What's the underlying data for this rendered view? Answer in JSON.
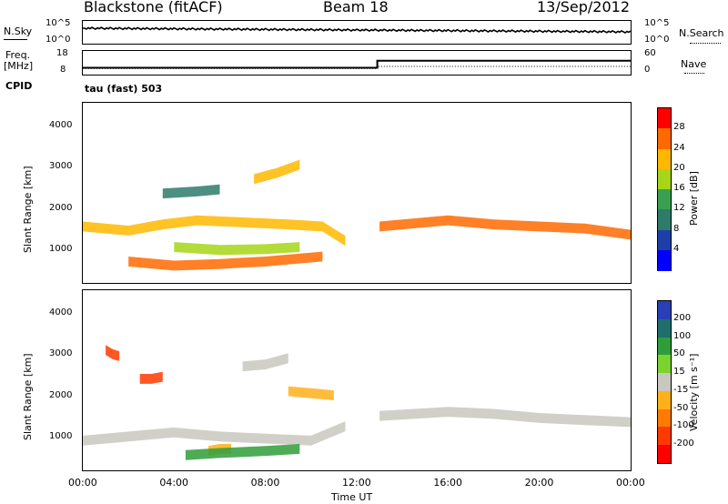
{
  "header": {
    "site": "Blackstone (fitACF)",
    "beam": "Beam 18",
    "date": "13/Sep/2012"
  },
  "status_panels": {
    "nsky_label": "N.Sky",
    "nsearch_label": "N.Search",
    "freq_label_1": "Freq.",
    "freq_label_2": "[MHz]",
    "nave_label": "Nave",
    "cpid_label": "CPID",
    "cpid_value": "tau (fast) 503",
    "noise_ticks": [
      "10^5",
      "10^0"
    ],
    "freq_ticks": [
      "18",
      "8"
    ],
    "nave_ticks": [
      "60",
      "0"
    ]
  },
  "x_axis": {
    "label": "Time UT",
    "ticks": [
      "00:00",
      "04:00",
      "08:00",
      "12:00",
      "16:00",
      "20:00",
      "00:00"
    ]
  },
  "y_axis": {
    "label": "Slant Range [km]",
    "ticks": [
      "1000",
      "2000",
      "3000",
      "4000"
    ]
  },
  "power_scale": {
    "label": "Power [dB]",
    "ticks": [
      "4",
      "8",
      "12",
      "16",
      "20",
      "24",
      "28"
    ],
    "colors": [
      "#0000ff",
      "#1f3fa8",
      "#2e7b6a",
      "#3aa050",
      "#a6d617",
      "#ffb800",
      "#ff6a00",
      "#ff0000"
    ]
  },
  "velocity_scale": {
    "label": "Velocity [m s⁻¹]",
    "ticks": [
      "200",
      "100",
      "50",
      "15",
      "-15",
      "-50",
      "-100",
      "-200"
    ],
    "colors": [
      "#2a3fb5",
      "#1f6e6c",
      "#2f9e3a",
      "#7ad32e",
      "#c8c8c0",
      "#ffb01a",
      "#ff7a00",
      "#ff3a00",
      "#ff0000"
    ]
  },
  "chart_data": {
    "type": "heatmap",
    "title": "Blackstone (fitACF)",
    "xlabel": "Time UT",
    "ylabel": "Slant Range [km]",
    "xlim": [
      0,
      24
    ],
    "ylim": [
      180,
      4550
    ],
    "frequency_series": {
      "x": [
        0,
        12.9,
        12.9,
        24
      ],
      "values": [
        10.5,
        10.5,
        14.0,
        14.0
      ]
    },
    "nave_series": {
      "x": [
        0,
        12.9,
        12.9,
        24
      ],
      "values": [
        13,
        13,
        19,
        19
      ]
    },
    "power_bands": [
      {
        "x": [
          0.0,
          2.0,
          3.5,
          5.0,
          7.0,
          9.0,
          10.5,
          11.5
        ],
        "range": [
          1550,
          1450,
          1600,
          1700,
          1650,
          1600,
          1550,
          1200
        ],
        "value": 20
      },
      {
        "x": [
          2.0,
          4.0,
          6.0,
          8.0,
          10.5
        ],
        "range": [
          700,
          600,
          640,
          700,
          820
        ],
        "value": 26
      },
      {
        "x": [
          4.0,
          6.0,
          8.0,
          9.5
        ],
        "range": [
          1050,
          980,
          1000,
          1050
        ],
        "value": 18
      },
      {
        "x": [
          7.5,
          8.5,
          9.5
        ],
        "range": [
          2700,
          2850,
          3050
        ],
        "value": 20
      },
      {
        "x": [
          13.0,
          16.0,
          18.0,
          20.0,
          22.0,
          24.0
        ],
        "range": [
          1550,
          1700,
          1600,
          1550,
          1500,
          1350
        ],
        "value": 24
      },
      {
        "x": [
          3.5,
          5.0,
          6.0
        ],
        "range": [
          2350,
          2400,
          2450
        ],
        "value": 10
      }
    ],
    "velocity_bands": [
      {
        "x": [
          0.0,
          2.0,
          4.0,
          6.0,
          8.0,
          10.0,
          11.5
        ],
        "range": [
          900,
          1000,
          1100,
          1000,
          950,
          900,
          1250
        ],
        "value": 0
      },
      {
        "x": [
          13.0,
          16.0,
          18.0,
          20.0,
          22.0,
          24.0
        ],
        "range": [
          1500,
          1600,
          1550,
          1450,
          1400,
          1350
        ],
        "value": 0
      },
      {
        "x": [
          5.5,
          6.0,
          6.5
        ],
        "range": [
          650,
          700,
          700
        ],
        "value": -50
      },
      {
        "x": [
          2.5,
          3.0,
          3.5
        ],
        "range": [
          2400,
          2400,
          2450
        ],
        "value": -200
      },
      {
        "x": [
          1.0,
          1.3,
          1.6
        ],
        "range": [
          3100,
          3000,
          2950
        ],
        "value": -200
      },
      {
        "x": [
          4.5,
          6.0,
          8.0,
          9.5
        ],
        "range": [
          550,
          600,
          650,
          700
        ],
        "value": 50
      },
      {
        "x": [
          9.0,
          10.0,
          11.0
        ],
        "range": [
          2100,
          2050,
          2000
        ],
        "value": -50
      },
      {
        "x": [
          7.0,
          8.0,
          9.0
        ],
        "range": [
          2700,
          2750,
          2900
        ],
        "value": 0
      }
    ]
  }
}
